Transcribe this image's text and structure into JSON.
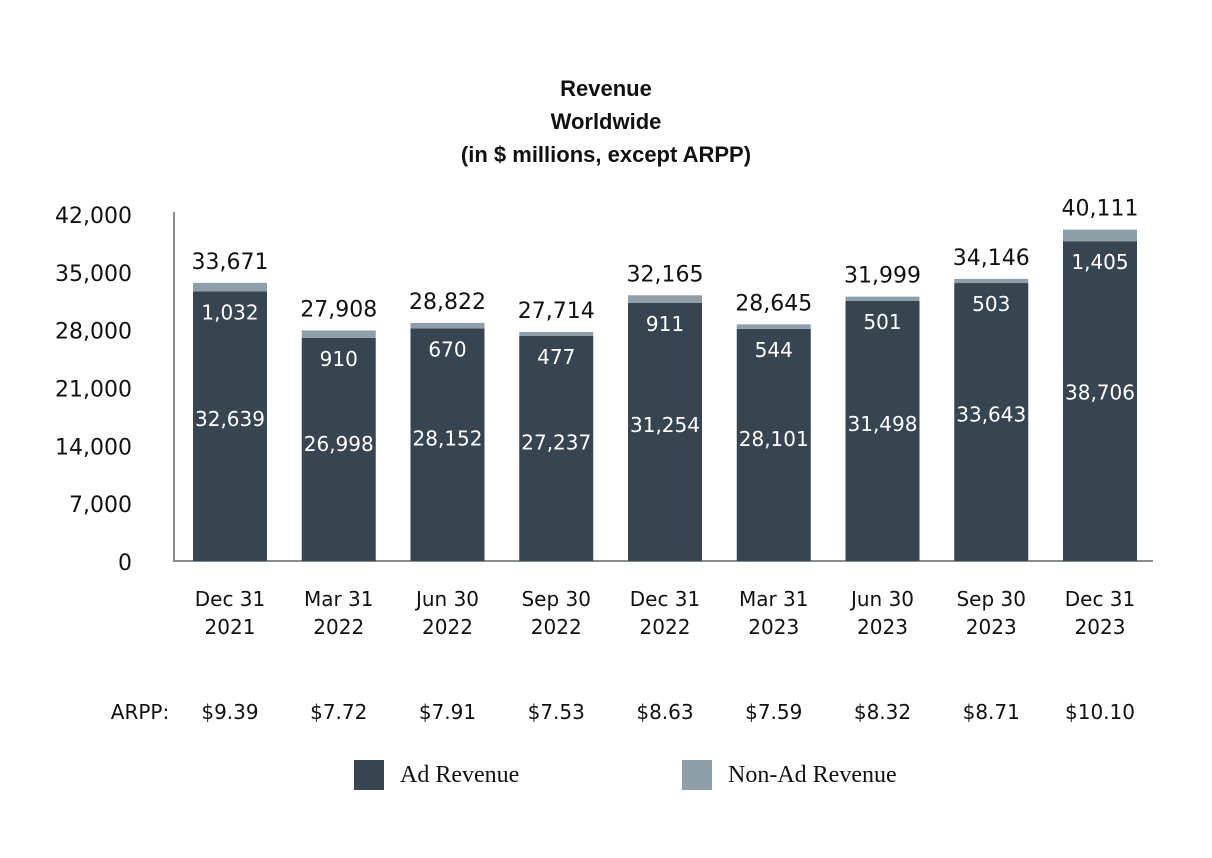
{
  "chart_data": {
    "type": "bar",
    "stacked": true,
    "title_lines": [
      "Revenue",
      "Worldwide",
      "(in $ millions, except ARPP)"
    ],
    "categories": [
      [
        "Dec 31",
        "2021"
      ],
      [
        "Mar 31",
        "2022"
      ],
      [
        "Jun 30",
        "2022"
      ],
      [
        "Sep 30",
        "2022"
      ],
      [
        "Dec 31",
        "2022"
      ],
      [
        "Mar 31",
        "2023"
      ],
      [
        "Jun 30",
        "2023"
      ],
      [
        "Sep 30",
        "2023"
      ],
      [
        "Dec 31",
        "2023"
      ]
    ],
    "series": [
      {
        "name": "Ad Revenue",
        "color": "#36454f",
        "values": [
          32639,
          26998,
          28152,
          27237,
          31254,
          28101,
          31498,
          33643,
          38706
        ],
        "labels": [
          "32,639",
          "26,998",
          "28,152",
          "27,237",
          "31,254",
          "28,101",
          "31,498",
          "33,643",
          "38,706"
        ]
      },
      {
        "name": "Non-Ad Revenue",
        "color": "#8f9faa",
        "values": [
          1032,
          910,
          670,
          477,
          911,
          544,
          501,
          503,
          1405
        ],
        "labels": [
          "1,032",
          "910",
          "670",
          "477",
          "911",
          "544",
          "501",
          "503",
          "1,405"
        ]
      }
    ],
    "totals": [
      33671,
      27908,
      28822,
      27714,
      32165,
      28645,
      31999,
      34146,
      40111
    ],
    "total_labels": [
      "33,671",
      "27,908",
      "28,822",
      "27,714",
      "32,165",
      "28,645",
      "31,999",
      "34,146",
      "40,111"
    ],
    "ylim": [
      0,
      42000
    ],
    "yticks": [
      0,
      7000,
      14000,
      21000,
      28000,
      35000,
      42000
    ],
    "ytick_labels": [
      "0",
      "7,000",
      "14,000",
      "21,000",
      "28,000",
      "35,000",
      "42,000"
    ],
    "arpp_label": "ARPP:",
    "arpp": [
      "$9.39",
      "$7.72",
      "$7.91",
      "$7.53",
      "$8.63",
      "$7.59",
      "$8.32",
      "$8.71",
      "$10.10"
    ],
    "legend": {
      "position": "bottom",
      "items": [
        "Ad Revenue",
        "Non-Ad Revenue"
      ]
    },
    "grid": false
  }
}
